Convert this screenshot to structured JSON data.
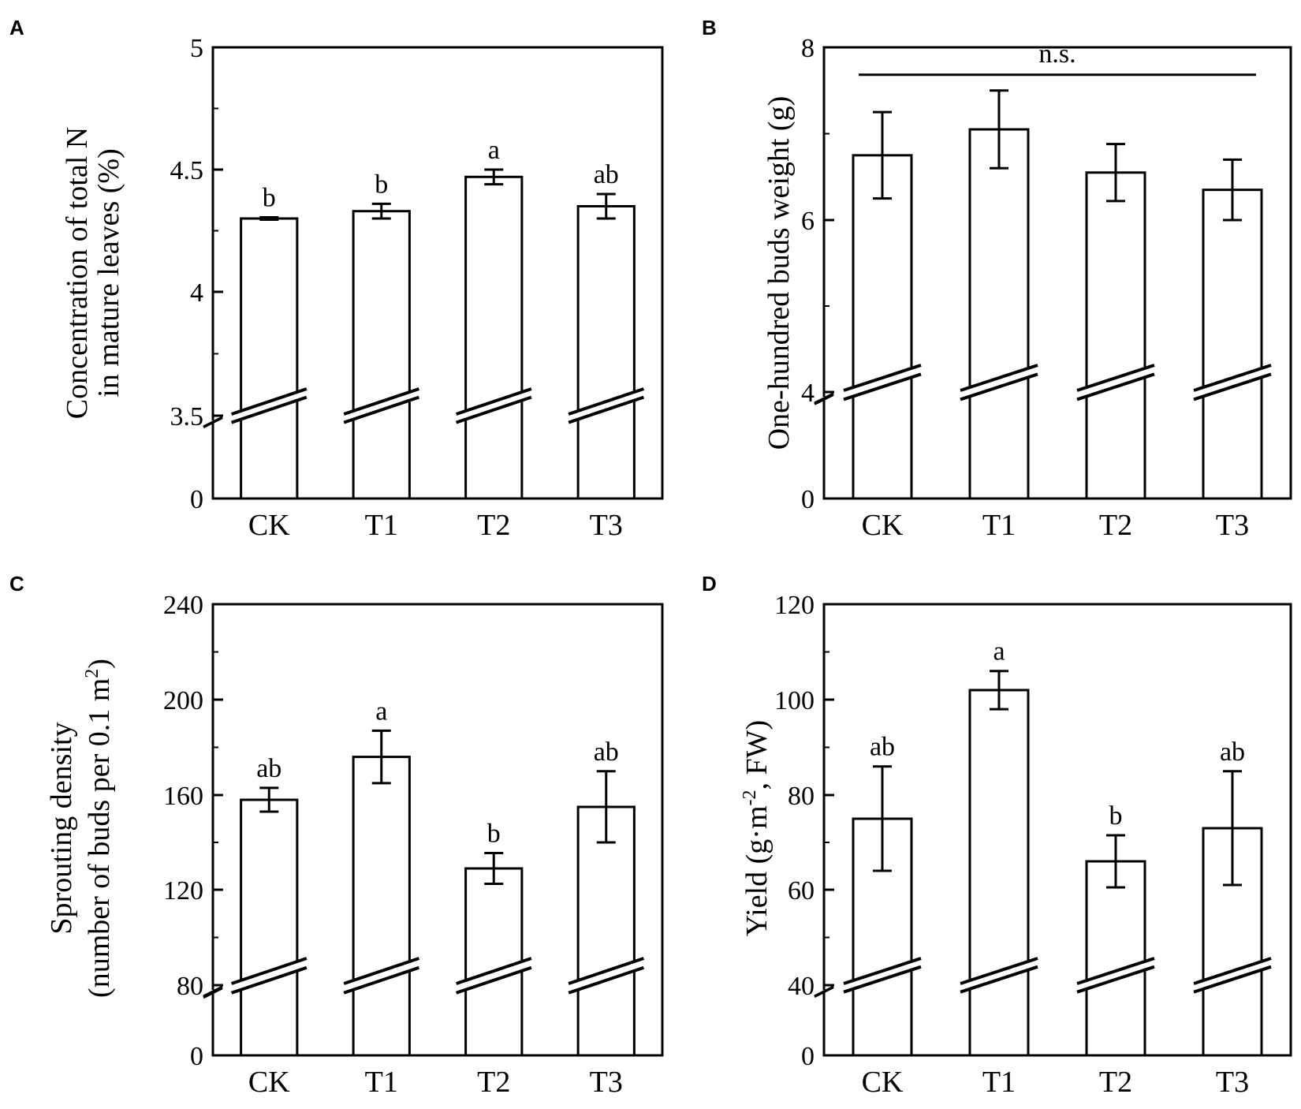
{
  "chart_data": [
    {
      "panel": "A",
      "type": "bar",
      "categories": [
        "CK",
        "T1",
        "T2",
        "T3"
      ],
      "values": [
        4.3,
        4.33,
        4.47,
        4.35
      ],
      "errors": [
        0.005,
        0.03,
        0.03,
        0.05
      ],
      "significance": [
        "b",
        "b",
        "a",
        "ab"
      ],
      "ylabel_lines": [
        "Concentration of total N",
        "in mature leaves (%)"
      ],
      "yticks": [
        "0",
        "3.5",
        "4",
        "4.5",
        "5"
      ],
      "axis_break_value": 3.5,
      "ylim": [
        0,
        5
      ],
      "bracket_label": null
    },
    {
      "panel": "B",
      "type": "bar",
      "categories": [
        "CK",
        "T1",
        "T2",
        "T3"
      ],
      "values": [
        6.75,
        7.05,
        6.55,
        6.35
      ],
      "errors": [
        0.5,
        0.45,
        0.33,
        0.35
      ],
      "significance": [],
      "ylabel_lines": [
        "One-hundred buds weight (g)"
      ],
      "yticks": [
        "0",
        "4",
        "6",
        "8"
      ],
      "axis_break_value": 4,
      "ylim": [
        0,
        8
      ],
      "bracket_label": "n.s."
    },
    {
      "panel": "C",
      "type": "bar",
      "categories": [
        "CK",
        "T1",
        "T2",
        "T3"
      ],
      "values": [
        158,
        176,
        129,
        155
      ],
      "errors": [
        5,
        11,
        6.5,
        15
      ],
      "significance": [
        "ab",
        "a",
        "b",
        "ab"
      ],
      "ylabel_lines": [
        "Sprouting density",
        "(number of buds per 0.1 m",
        "2",
        ")"
      ],
      "yticks": [
        "0",
        "80",
        "120",
        "160",
        "200",
        "240"
      ],
      "axis_break_value": 80,
      "ylim": [
        0,
        240
      ],
      "bracket_label": null
    },
    {
      "panel": "D",
      "type": "bar",
      "categories": [
        "CK",
        "T1",
        "T2",
        "T3"
      ],
      "values": [
        75,
        102,
        66,
        73
      ],
      "errors": [
        11,
        4,
        5.5,
        12
      ],
      "significance": [
        "ab",
        "a",
        "b",
        "ab"
      ],
      "ylabel_lines": [
        "Yield (g·m",
        "-2",
        ", FW)"
      ],
      "yticks": [
        "0",
        "40",
        "60",
        "80",
        "100",
        "120"
      ],
      "axis_break_value": 40,
      "ylim": [
        0,
        120
      ],
      "bracket_label": null
    }
  ]
}
